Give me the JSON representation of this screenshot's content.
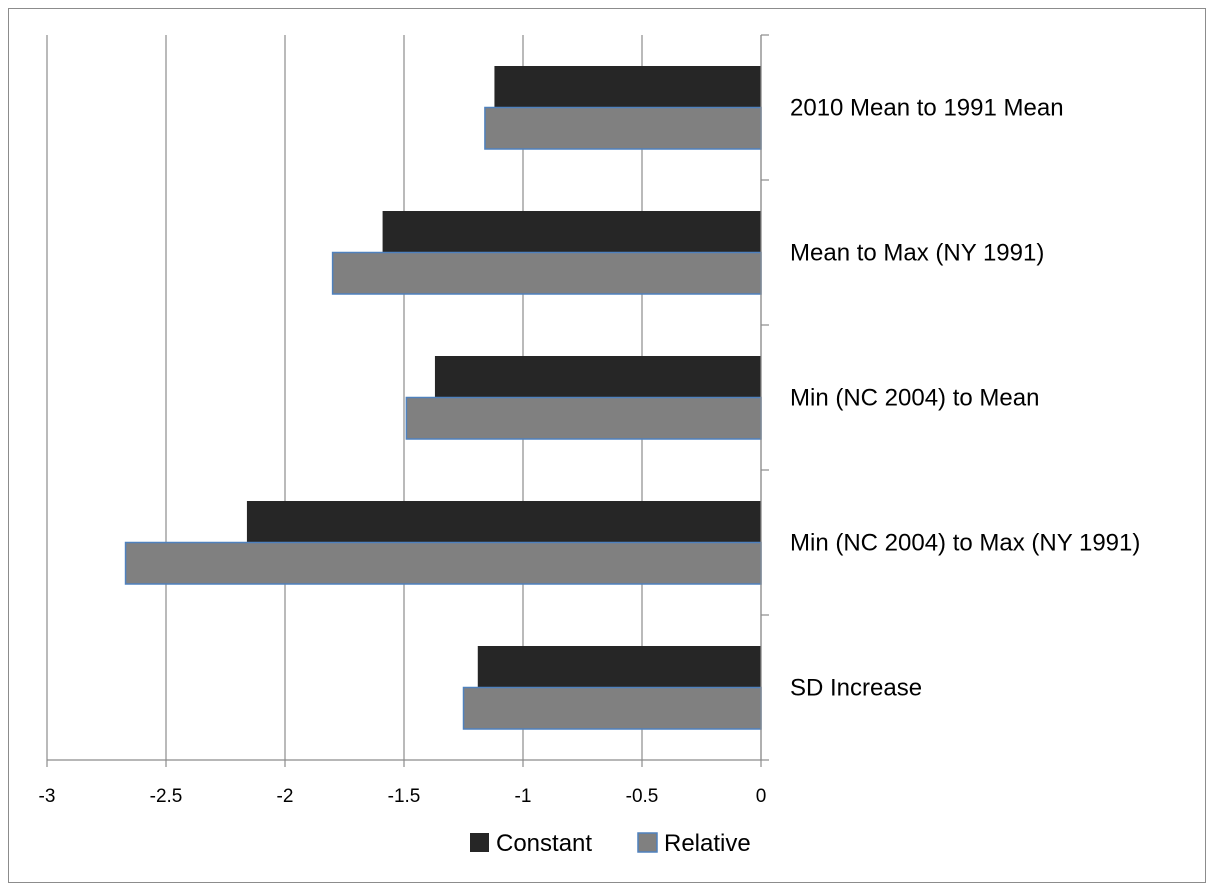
{
  "chart_data": {
    "type": "bar",
    "orientation": "horizontal",
    "categories": [
      "2010 Mean to 1991 Mean",
      "Mean to Max (NY 1991)",
      "Min (NC 2004) to Mean",
      "Min (NC 2004) to Max (NY 1991)",
      "SD Increase"
    ],
    "series": [
      {
        "name": "Constant",
        "color": "#262626",
        "values": [
          -1.12,
          -1.59,
          -1.37,
          -2.16,
          -1.19
        ]
      },
      {
        "name": "Relative",
        "color": "#808080",
        "values": [
          -1.16,
          -1.8,
          -1.49,
          -2.67,
          -1.25
        ]
      }
    ],
    "xlim": [
      -3,
      0
    ],
    "xticks": [
      "-3",
      "-2.5",
      "-2",
      "-1.5",
      "-1",
      "-0.5",
      "0"
    ],
    "grid": "vertical",
    "legend": "bottom",
    "category_label_side": "right"
  }
}
